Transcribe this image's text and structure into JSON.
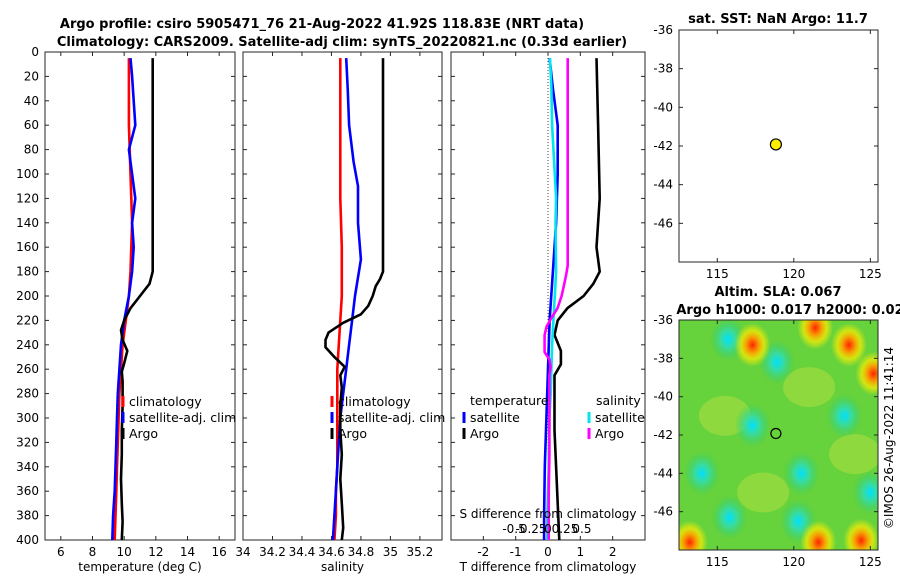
{
  "title": {
    "line1": "Argo profile: csiro 5905471_76 21-Aug-2022 41.92S 118.83E (NRT data)",
    "line2": "Climatology: CARS2009. Satellite-adj clim: synTS_20220821.nc (0.33d earlier)"
  },
  "credit": "©IMOS 26-Aug-2022 11:41:14",
  "colors": {
    "climatology": "#ff0000",
    "satellite": "#0000ff",
    "argo": "#000000",
    "cyan": "#00e5ee",
    "magenta": "#ff00ff",
    "marker": "#ffee00"
  },
  "chart_data": [
    {
      "id": "temperature",
      "type": "line",
      "xlabel": "temperature (deg C)",
      "xlim": [
        5,
        17
      ],
      "ylim": [
        0,
        400
      ],
      "xticks": [
        "6",
        "8",
        "10",
        "12",
        "14",
        "16"
      ],
      "yticks": [
        "0",
        "20",
        "40",
        "60",
        "80",
        "100",
        "120",
        "140",
        "160",
        "180",
        "200",
        "220",
        "240",
        "260",
        "280",
        "300",
        "320",
        "340",
        "360",
        "380",
        "400"
      ],
      "legend": [
        "climatology",
        "satellite-adj. clim",
        "Argo"
      ],
      "series": [
        {
          "name": "climatology",
          "depth": [
            5,
            20,
            40,
            60,
            80,
            100,
            120,
            140,
            160,
            180,
            200,
            220,
            240,
            260,
            280,
            300,
            320,
            340,
            360,
            380,
            400
          ],
          "values": [
            10.3,
            10.3,
            10.3,
            10.3,
            10.35,
            10.4,
            10.45,
            10.5,
            10.45,
            10.4,
            10.3,
            10.1,
            9.9,
            9.8,
            9.7,
            9.65,
            9.6,
            9.55,
            9.5,
            9.45,
            9.4
          ]
        },
        {
          "name": "satellite-adj. clim",
          "depth": [
            5,
            20,
            40,
            60,
            80,
            100,
            120,
            140,
            160,
            180,
            200,
            220,
            240,
            260,
            280,
            300,
            320,
            340,
            360,
            380,
            400
          ],
          "values": [
            10.4,
            10.5,
            10.6,
            10.7,
            10.3,
            10.5,
            10.7,
            10.5,
            10.6,
            10.5,
            10.3,
            10.0,
            9.8,
            9.7,
            9.6,
            9.55,
            9.5,
            9.45,
            9.4,
            9.3,
            9.25
          ]
        },
        {
          "name": "Argo",
          "depth": [
            5,
            60,
            120,
            180,
            190,
            200,
            210,
            220,
            228,
            236,
            245,
            255,
            262,
            270,
            290,
            310,
            330,
            350,
            370,
            385,
            400
          ],
          "values": [
            11.8,
            11.8,
            11.8,
            11.8,
            11.6,
            11.0,
            10.4,
            10.0,
            9.8,
            9.9,
            10.2,
            10.0,
            9.85,
            9.9,
            9.9,
            9.85,
            9.85,
            9.8,
            9.85,
            9.9,
            9.85
          ]
        }
      ]
    },
    {
      "id": "salinity",
      "type": "line",
      "xlabel": "salinity",
      "xlim": [
        34.0,
        35.35
      ],
      "ylim": [
        0,
        400
      ],
      "xticks": [
        "34",
        "34.2",
        "34.4",
        "34.6",
        "34.8",
        "35",
        "35.2"
      ],
      "legend": [
        "climatology",
        "satellite-adj. clim",
        "Argo"
      ],
      "series": [
        {
          "name": "climatology",
          "depth": [
            5,
            40,
            80,
            120,
            160,
            200,
            220,
            240,
            260,
            280,
            300,
            320,
            340,
            360,
            380,
            400
          ],
          "values": [
            34.66,
            34.66,
            34.66,
            34.66,
            34.67,
            34.67,
            34.66,
            34.65,
            34.64,
            34.64,
            34.64,
            34.64,
            34.64,
            34.63,
            34.63,
            34.62
          ]
        },
        {
          "name": "satellite-adj. clim",
          "depth": [
            5,
            30,
            60,
            90,
            110,
            140,
            170,
            200,
            220,
            240,
            260,
            280,
            300,
            320,
            340,
            360,
            380,
            400
          ],
          "values": [
            34.7,
            34.71,
            34.72,
            34.75,
            34.78,
            34.78,
            34.8,
            34.76,
            34.74,
            34.72,
            34.7,
            34.68,
            34.66,
            34.65,
            34.64,
            34.63,
            34.62,
            34.61
          ]
        },
        {
          "name": "Argo",
          "depth": [
            5,
            100,
            180,
            186,
            192,
            200,
            208,
            215,
            222,
            230,
            236,
            242,
            250,
            258,
            265,
            275,
            290,
            310,
            330,
            350,
            370,
            390,
            400
          ],
          "values": [
            34.95,
            34.95,
            34.95,
            34.93,
            34.9,
            34.88,
            34.85,
            34.8,
            34.68,
            34.58,
            34.56,
            34.56,
            34.62,
            34.69,
            34.66,
            34.67,
            34.66,
            34.66,
            34.67,
            34.66,
            34.67,
            34.68,
            34.67
          ]
        }
      ]
    },
    {
      "id": "difference",
      "type": "line",
      "xlabel": "T difference from climatology",
      "xlim": [
        -3,
        3
      ],
      "ylim": [
        0,
        400
      ],
      "xticks": [
        "-2",
        "-1",
        "0",
        "1",
        "2"
      ],
      "s_xlabel": "S difference from climatology",
      "s_xticks": [
        "-0.5",
        "-0.25",
        "0",
        "0.25",
        "0.5"
      ],
      "legend_headers": [
        "temperature",
        "salinity"
      ],
      "legend_t": [
        "satellite",
        "Argo"
      ],
      "legend_s": [
        "satellite",
        "Argo"
      ],
      "series": [
        {
          "name": "T satellite",
          "depth": [
            5,
            30,
            60,
            100,
            140,
            180,
            220,
            260,
            300,
            340,
            380,
            400
          ],
          "values": [
            0.05,
            0.15,
            0.3,
            0.3,
            0.25,
            0.15,
            0.05,
            0.0,
            -0.05,
            -0.1,
            -0.12,
            -0.12
          ]
        },
        {
          "name": "T Argo",
          "depth": [
            5,
            60,
            120,
            160,
            180,
            190,
            200,
            210,
            220,
            232,
            245,
            256,
            265,
            285,
            310,
            340,
            370,
            400
          ],
          "values": [
            1.5,
            1.55,
            1.6,
            1.5,
            1.6,
            1.4,
            1.1,
            0.6,
            0.3,
            0.2,
            0.4,
            0.4,
            0.2,
            0.2,
            0.2,
            0.25,
            0.3,
            0.35
          ]
        },
        {
          "name": "S satellite",
          "depth": [
            5,
            30,
            60,
            100,
            120,
            140,
            180,
            200,
            220,
            240,
            260,
            280,
            300,
            340,
            380,
            400
          ],
          "values": [
            0.03,
            0.05,
            0.06,
            0.1,
            0.12,
            0.11,
            0.12,
            0.1,
            0.08,
            0.06,
            0.05,
            0.04,
            0.02,
            0.01,
            -0.01,
            -0.01
          ]
        },
        {
          "name": "S Argo",
          "depth": [
            5,
            100,
            160,
            175,
            182,
            190,
            200,
            210,
            218,
            225,
            232,
            238,
            246,
            252,
            258,
            265,
            275,
            300,
            330,
            360,
            400
          ],
          "values": [
            0.29,
            0.29,
            0.29,
            0.29,
            0.27,
            0.24,
            0.2,
            0.14,
            0.05,
            -0.02,
            -0.05,
            -0.05,
            -0.05,
            0.02,
            0.04,
            0.02,
            0.02,
            0.02,
            0.02,
            0.01,
            0.01
          ]
        }
      ]
    },
    {
      "id": "sst-map",
      "type": "scatter",
      "title": "sat. SST: NaN Argo: 11.7",
      "xlim": [
        112.5,
        125.5
      ],
      "ylim": [
        -48,
        -36
      ],
      "xticks": [
        "115",
        "120",
        "125"
      ],
      "yticks": [
        "-36",
        "-38",
        "-40",
        "-42",
        "-44",
        "-46"
      ],
      "points": [
        {
          "lon": 118.83,
          "lat": -41.92
        }
      ]
    },
    {
      "id": "sla-map",
      "type": "heatmap",
      "title1": "Altim. SLA: 0.067",
      "title2": "Argo h1000: 0.017 h2000: 0.02",
      "xlim": [
        112.5,
        125.5
      ],
      "ylim": [
        -48,
        -36
      ],
      "xticks": [
        "115",
        "120",
        "125"
      ],
      "yticks": [
        "-36",
        "-38",
        "-40",
        "-42",
        "-44",
        "-46"
      ],
      "points": [
        {
          "lon": 118.83,
          "lat": -41.92
        }
      ],
      "blobs": [
        {
          "lon": 115.7,
          "lat": -37.0,
          "sign": -1
        },
        {
          "lon": 118.9,
          "lat": -38.2,
          "sign": -1
        },
        {
          "lon": 114.0,
          "lat": -44.0,
          "sign": -1
        },
        {
          "lon": 120.5,
          "lat": -44.0,
          "sign": -1
        },
        {
          "lon": 115.8,
          "lat": -46.3,
          "sign": -1
        },
        {
          "lon": 120.3,
          "lat": -46.5,
          "sign": -1
        },
        {
          "lon": 123.3,
          "lat": -41.0,
          "sign": -1
        },
        {
          "lon": 117.3,
          "lat": -41.5,
          "sign": -1
        },
        {
          "lon": 125.0,
          "lat": -45.0,
          "sign": -1
        },
        {
          "lon": 117.3,
          "lat": -37.3,
          "sign": 1
        },
        {
          "lon": 121.4,
          "lat": -36.4,
          "sign": 1
        },
        {
          "lon": 123.6,
          "lat": -37.3,
          "sign": 1
        },
        {
          "lon": 124.4,
          "lat": -47.5,
          "sign": 1
        },
        {
          "lon": 113.2,
          "lat": -47.6,
          "sign": 1
        },
        {
          "lon": 121.6,
          "lat": -47.6,
          "sign": 1
        },
        {
          "lon": 125.2,
          "lat": -38.8,
          "sign": 1
        }
      ]
    }
  ]
}
